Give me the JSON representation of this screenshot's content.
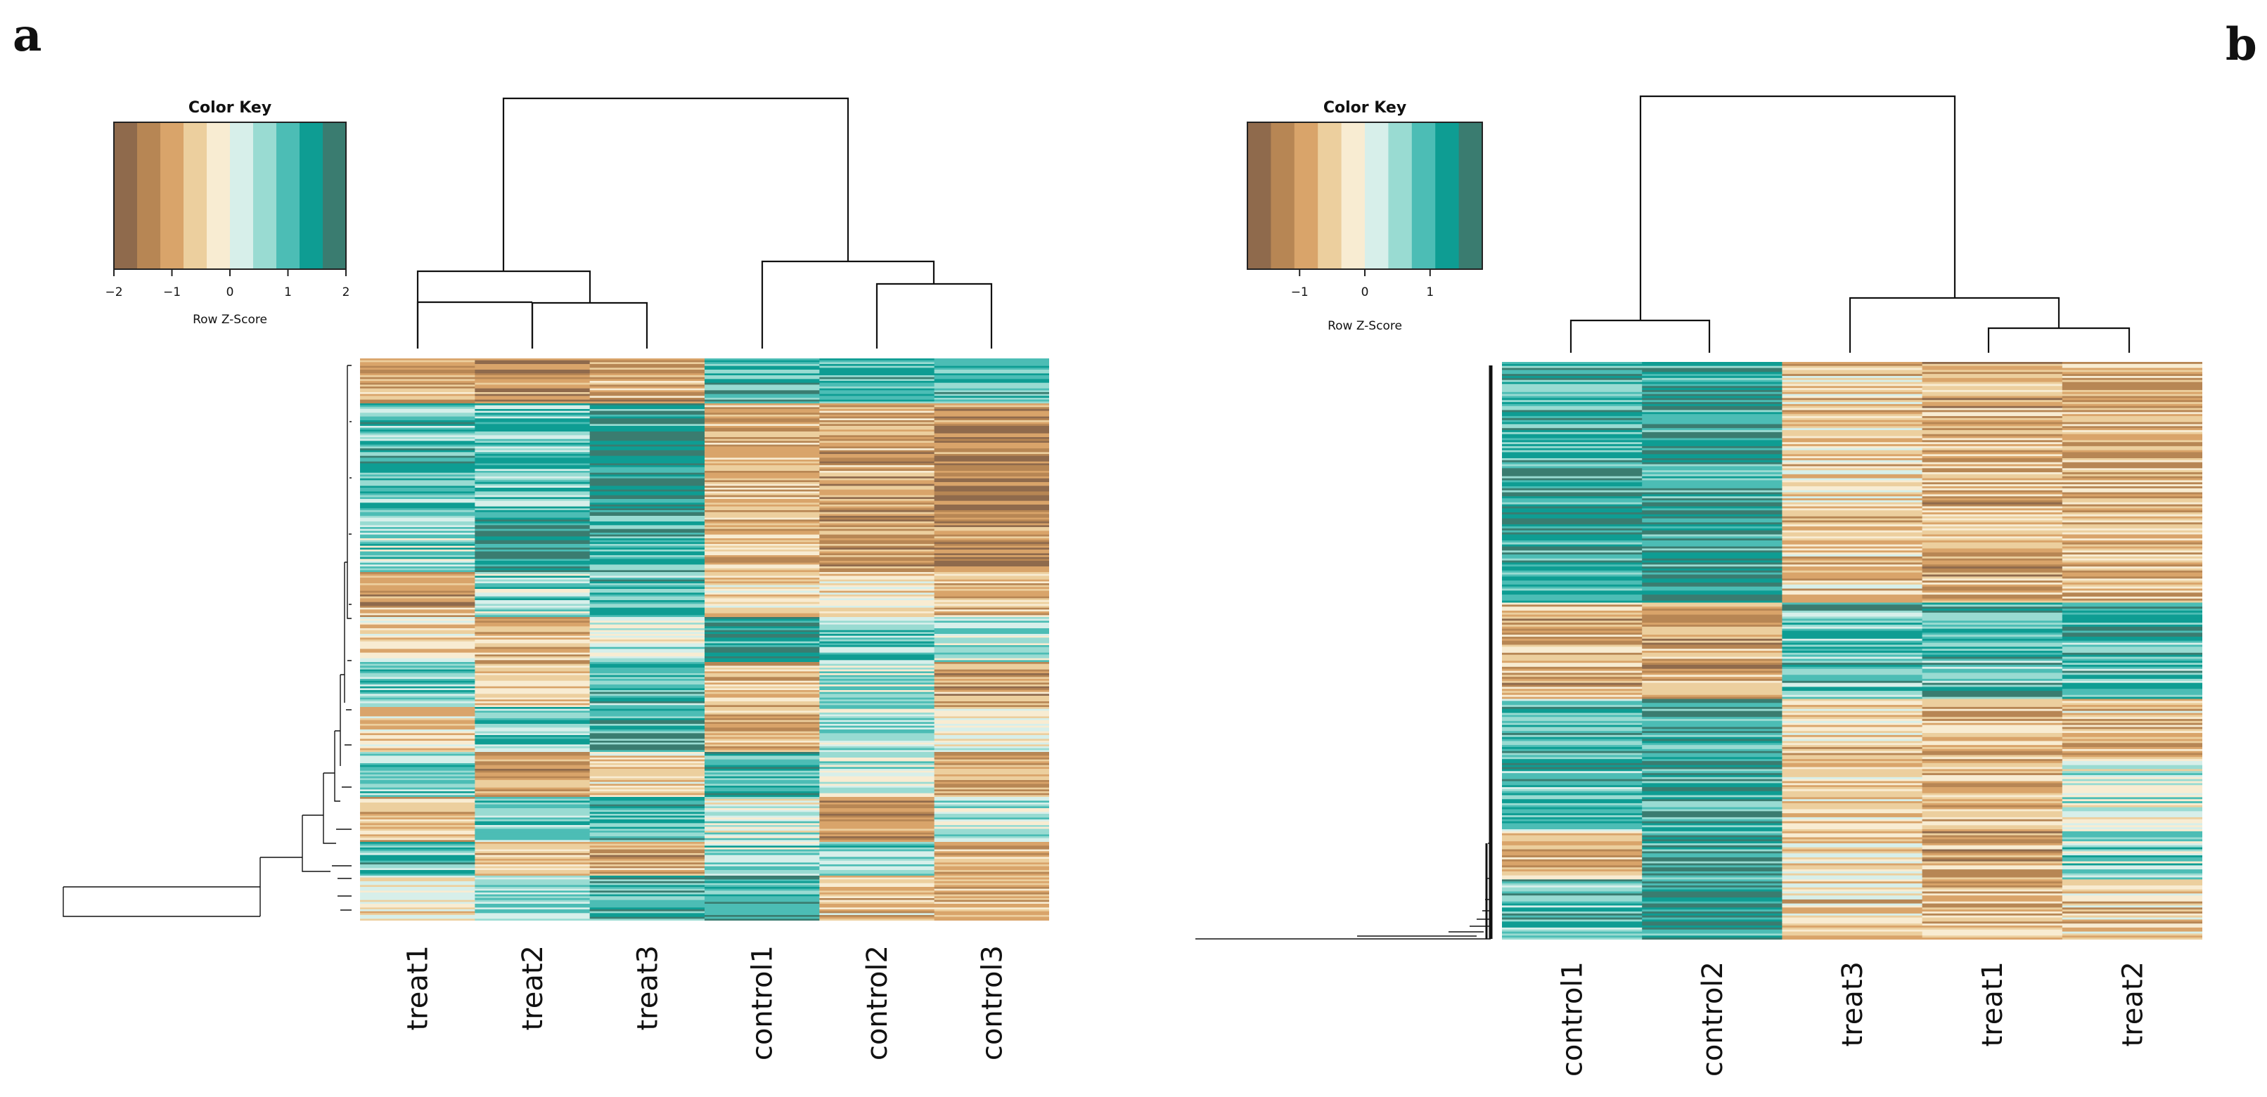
{
  "figure": {
    "panels": [
      {
        "label": "a"
      },
      {
        "label": "b"
      }
    ]
  },
  "chart_data": [
    {
      "type": "heatmap",
      "panel": "a",
      "title": "",
      "columns": [
        "treat1",
        "treat2",
        "treat3",
        "control1",
        "control2",
        "control3"
      ],
      "color_key": {
        "title": "Color Key",
        "label": "Row Z-Score",
        "range": [
          -2,
          2
        ],
        "ticks": [
          "-2",
          "-1",
          "0",
          "1",
          "2"
        ],
        "tick_values": [
          -2,
          -1,
          0,
          1,
          2
        ],
        "colors": [
          "#8f6a4c",
          "#b78654",
          "#d9a46a",
          "#eccf9e",
          "#f8ecd2",
          "#d7efea",
          "#99dbd2",
          "#4cbdb5",
          "#0e9d93",
          "#3a7c70"
        ]
      },
      "column_dendrogram": {
        "merges": [
          {
            "left": "treat2",
            "right": "treat3",
            "height": 0.2
          },
          {
            "left": "treat1",
            "right": "treat2+treat3",
            "height": 0.38
          },
          {
            "left": "control2",
            "right": "control3",
            "height": 0.26
          },
          {
            "left": "control1",
            "right": "control2+control3",
            "height": 0.38
          },
          {
            "left": "treatments",
            "right": "controls",
            "height": 1.0
          }
        ]
      },
      "row_blocks": [
        {
          "rows": 4,
          "values": [
            -0.8,
            -1.3,
            -1.0,
            1.2,
            1.0,
            1.1
          ]
        },
        {
          "rows": 10,
          "values": [
            1.0,
            0.9,
            1.4,
            -0.9,
            -1.0,
            -1.4
          ]
        },
        {
          "rows": 5,
          "values": [
            0.6,
            1.5,
            1.1,
            -0.7,
            -1.1,
            -1.4
          ]
        },
        {
          "rows": 4,
          "values": [
            -1.0,
            0.6,
            1.0,
            -0.5,
            -0.3,
            -0.8
          ]
        },
        {
          "rows": 4,
          "values": [
            -0.4,
            -0.8,
            0.2,
            1.4,
            0.8,
            0.4
          ]
        },
        {
          "rows": 4,
          "values": [
            0.8,
            -0.6,
            1.0,
            -0.8,
            0.5,
            -1.0
          ]
        },
        {
          "rows": 4,
          "values": [
            -0.5,
            0.8,
            1.2,
            -0.9,
            0.4,
            0.1
          ]
        },
        {
          "rows": 4,
          "values": [
            0.7,
            -1.1,
            -0.6,
            1.0,
            0.3,
            -0.9
          ]
        },
        {
          "rows": 4,
          "values": [
            -0.6,
            0.9,
            1.1,
            0.2,
            -1.2,
            0.4
          ]
        },
        {
          "rows": 3,
          "values": [
            1.0,
            -0.7,
            -1.0,
            0.6,
            0.7,
            -0.8
          ]
        },
        {
          "rows": 4,
          "values": [
            -0.3,
            0.5,
            1.1,
            1.2,
            -0.6,
            -0.9
          ]
        }
      ]
    },
    {
      "type": "heatmap",
      "panel": "b",
      "title": "",
      "columns": [
        "control1",
        "control2",
        "treat3",
        "treat1",
        "treat2"
      ],
      "color_key": {
        "title": "Color Key",
        "label": "Row Z-Score",
        "range": [
          -1.8,
          1.8
        ],
        "ticks": [
          "-1",
          "0",
          "1"
        ],
        "tick_values": [
          -1,
          0,
          1
        ],
        "colors": [
          "#8f6a4c",
          "#b78654",
          "#d9a46a",
          "#eccf9e",
          "#f8ecd2",
          "#d7efea",
          "#99dbd2",
          "#4cbdb5",
          "#0e9d93",
          "#3a7c70"
        ]
      },
      "column_dendrogram": {
        "merges": [
          {
            "left": "control1",
            "right": "control2",
            "height": 0.18
          },
          {
            "left": "treat1",
            "right": "treat2",
            "height": 0.1
          },
          {
            "left": "treat3",
            "right": "treat1+treat2",
            "height": 0.25
          },
          {
            "left": "controls",
            "right": "treatments",
            "height": 1.0
          }
        ]
      },
      "row_blocks": [
        {
          "rows": 20,
          "values": [
            1.1,
            1.3,
            -0.5,
            -0.8,
            -0.7
          ]
        },
        {
          "rows": 8,
          "values": [
            -0.8,
            -0.9,
            0.9,
            1.0,
            0.9
          ]
        },
        {
          "rows": 5,
          "values": [
            1.0,
            1.2,
            -0.5,
            -0.7,
            -0.6
          ]
        },
        {
          "rows": 6,
          "values": [
            0.9,
            1.1,
            -0.4,
            -0.7,
            0.2
          ]
        },
        {
          "rows": 4,
          "values": [
            -0.7,
            1.2,
            -0.4,
            -0.8,
            0.5
          ]
        },
        {
          "rows": 5,
          "values": [
            0.9,
            1.3,
            -0.5,
            -0.7,
            -0.5
          ]
        }
      ]
    }
  ]
}
